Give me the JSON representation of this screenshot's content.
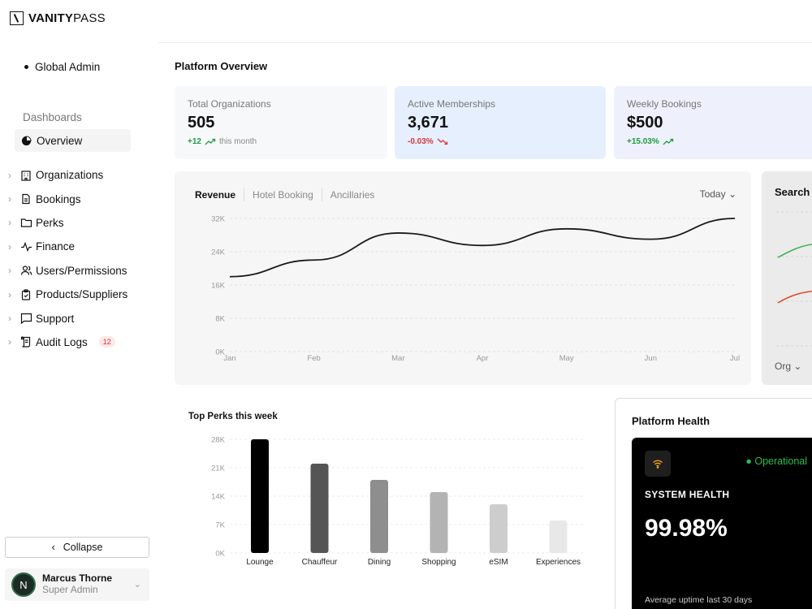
{
  "brand": {
    "bold": "VANITY",
    "light": "PASS"
  },
  "sidebar": {
    "role": "Global Admin",
    "section_label": "Dashboards",
    "overview_label": "Overview",
    "items": [
      {
        "label": "Organizations",
        "icon": "building-icon"
      },
      {
        "label": "Bookings",
        "icon": "document-icon"
      },
      {
        "label": "Perks",
        "icon": "folder-icon"
      },
      {
        "label": "Finance",
        "icon": "activity-icon"
      },
      {
        "label": "Users/Permissions",
        "icon": "users-icon"
      },
      {
        "label": "Products/Suppliers",
        "icon": "clipboard-icon"
      },
      {
        "label": "Support",
        "icon": "chat-icon"
      },
      {
        "label": "Audit Logs",
        "icon": "scroll-icon",
        "badge": "12"
      }
    ],
    "collapse_label": "Collapse",
    "user": {
      "initial": "N",
      "name": "Marcus Thorne",
      "role": "Super Admin"
    }
  },
  "page": {
    "title": "Platform Overview"
  },
  "stats": [
    {
      "label": "Total Organizations",
      "value": "505",
      "delta": "+12",
      "trend": "up",
      "note": "this month",
      "bg": "#f7f8fa"
    },
    {
      "label": "Active Memberships",
      "value": "3,671",
      "delta": "-0.03%",
      "trend": "down",
      "note": "",
      "bg": "#e6effd"
    },
    {
      "label": "Weekly Bookings",
      "value": "$500",
      "delta": "+15.03%",
      "trend": "up",
      "note": "",
      "bg": "#eef0fb"
    }
  ],
  "revenue": {
    "tabs": [
      "Revenue",
      "Hotel Booking",
      "Ancillaries"
    ],
    "range_label": "Today"
  },
  "search_card": {
    "title": "Search",
    "filter_label": "Org"
  },
  "perks": {
    "title": "Top Perks this week"
  },
  "health": {
    "title": "Platform Health",
    "status": "Operational",
    "label": "SYSTEM HEALTH",
    "value": "99.98%",
    "note": "Average uptime last 30 days"
  },
  "chart_data": [
    {
      "type": "line",
      "x": [
        "Jan",
        "Feb",
        "Mar",
        "Apr",
        "May",
        "Jun",
        "Jul"
      ],
      "yticks": [
        "0K",
        "8K",
        "16K",
        "24K",
        "32K"
      ],
      "ylim": [
        0,
        32000
      ],
      "series": [
        {
          "values": [
            18000,
            22000,
            28500,
            25500,
            29500,
            27000,
            32000
          ],
          "color": "#1b1b1b"
        }
      ]
    },
    {
      "type": "bar",
      "categories": [
        "Lounge",
        "Chauffeur",
        "Dining",
        "Shopping",
        "eSIM",
        "Experiences"
      ],
      "yticks": [
        "0K",
        "7K",
        "14K",
        "21K",
        "28K"
      ],
      "ylim": [
        0,
        28000
      ],
      "values": [
        28000,
        22000,
        18000,
        15000,
        12000,
        8000
      ],
      "colors": [
        "#000000",
        "#555555",
        "#8e8e8e",
        "#b3b3b3",
        "#cdcdcd",
        "#e8e8e8"
      ]
    }
  ]
}
